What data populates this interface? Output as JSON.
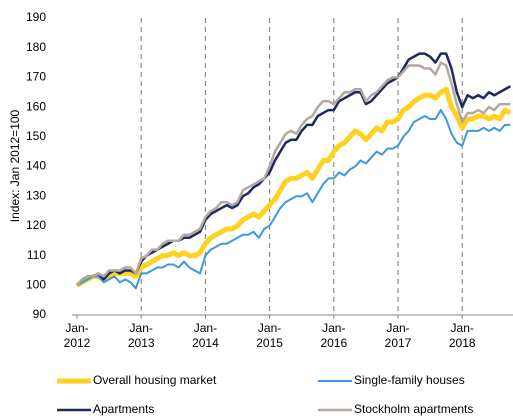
{
  "chart_data": {
    "type": "line",
    "y_label": "Index: Jan 2012=100",
    "ylim": [
      90,
      190
    ],
    "yticks": [
      90,
      100,
      110,
      120,
      130,
      140,
      150,
      160,
      170,
      180,
      190
    ],
    "categories": [
      "Jan-\n2012",
      null,
      null,
      null,
      null,
      null,
      null,
      null,
      null,
      null,
      null,
      null,
      "Jan-\n2013",
      null,
      null,
      null,
      null,
      null,
      null,
      null,
      null,
      null,
      null,
      null,
      "Jan-\n2014",
      null,
      null,
      null,
      null,
      null,
      null,
      null,
      null,
      null,
      null,
      null,
      "Jan-\n2015",
      null,
      null,
      null,
      null,
      null,
      null,
      null,
      null,
      null,
      null,
      null,
      "Jan-\n2016",
      null,
      null,
      null,
      null,
      null,
      null,
      null,
      null,
      null,
      null,
      null,
      "Jan-\n2017",
      null,
      null,
      null,
      null,
      null,
      null,
      null,
      null,
      null,
      null,
      null,
      "Jan-\n2018",
      null,
      null,
      null,
      null,
      null,
      null,
      null,
      null,
      null
    ],
    "series": [
      {
        "name": "Overall housing market",
        "color": "#ffd21f",
        "width": 5,
        "values": [
          100,
          101,
          102,
          103,
          103,
          102,
          103,
          104,
          104,
          104,
          104,
          103,
          106,
          107,
          108,
          109,
          110,
          110,
          111,
          110,
          111,
          110,
          110,
          111,
          114,
          116,
          117,
          118,
          119,
          119,
          120,
          122,
          123,
          124,
          123,
          125,
          127,
          129,
          132,
          135,
          136,
          136,
          137,
          138,
          136,
          139,
          142,
          142,
          145,
          147,
          148,
          150,
          152,
          151,
          149,
          151,
          153,
          152,
          155,
          155,
          156,
          159,
          160,
          162,
          163,
          164,
          164,
          163,
          165,
          166,
          160,
          157,
          153,
          156,
          156,
          157,
          157,
          156,
          157,
          156,
          159,
          158
        ]
      },
      {
        "name": "Single-family houses",
        "color": "#3a9ae0",
        "width": 2,
        "values": [
          100,
          101,
          102,
          103,
          103,
          101,
          102,
          103,
          101,
          102,
          101,
          99,
          104,
          104,
          105,
          106,
          106,
          107,
          107,
          106,
          108,
          106,
          105,
          104,
          110,
          112,
          113,
          114,
          114,
          115,
          116,
          117,
          117,
          118,
          116,
          119,
          120,
          123,
          126,
          128,
          129,
          130,
          130,
          131,
          128,
          131,
          134,
          136,
          136,
          138,
          137,
          139,
          140,
          142,
          141,
          143,
          145,
          144,
          146,
          146,
          147,
          150,
          152,
          155,
          156,
          157,
          156,
          156,
          159,
          156,
          151,
          148,
          147,
          152,
          152,
          152,
          153,
          152,
          153,
          152,
          154,
          154
        ]
      },
      {
        "name": "Apartments",
        "color": "#1f2a5c",
        "width": 2.5,
        "values": [
          100,
          102,
          103,
          103,
          104,
          102,
          104,
          105,
          104,
          105,
          105,
          104,
          108,
          110,
          111,
          112,
          113,
          114,
          115,
          115,
          116,
          116,
          117,
          118,
          122,
          124,
          125,
          126,
          127,
          126,
          127,
          130,
          131,
          133,
          134,
          136,
          138,
          142,
          145,
          148,
          149,
          149,
          152,
          154,
          154,
          157,
          158,
          159,
          159,
          162,
          163,
          164,
          165,
          165,
          161,
          162,
          164,
          166,
          168,
          169,
          170,
          173,
          176,
          177,
          178,
          178,
          177,
          175,
          178,
          178,
          173,
          165,
          160,
          164,
          163,
          164,
          163,
          165,
          164,
          165,
          166,
          167
        ]
      },
      {
        "name": "Stockholm apartments",
        "color": "#b4a8a0",
        "width": 2.5,
        "values": [
          100,
          102,
          103,
          103,
          104,
          103,
          105,
          105,
          105,
          106,
          106,
          104,
          109,
          110,
          112,
          112,
          114,
          115,
          115,
          115,
          117,
          117,
          118,
          119,
          123,
          125,
          126,
          128,
          128,
          127,
          128,
          132,
          133,
          134,
          135,
          136,
          140,
          145,
          148,
          151,
          152,
          151,
          154,
          156,
          157,
          160,
          162,
          162,
          161,
          163,
          165,
          165,
          166,
          166,
          162,
          164,
          165,
          167,
          169,
          170,
          170,
          172,
          174,
          174,
          174,
          173,
          173,
          171,
          175,
          174,
          168,
          161,
          155,
          158,
          158,
          159,
          158,
          160,
          159,
          161,
          161,
          161
        ]
      }
    ]
  }
}
